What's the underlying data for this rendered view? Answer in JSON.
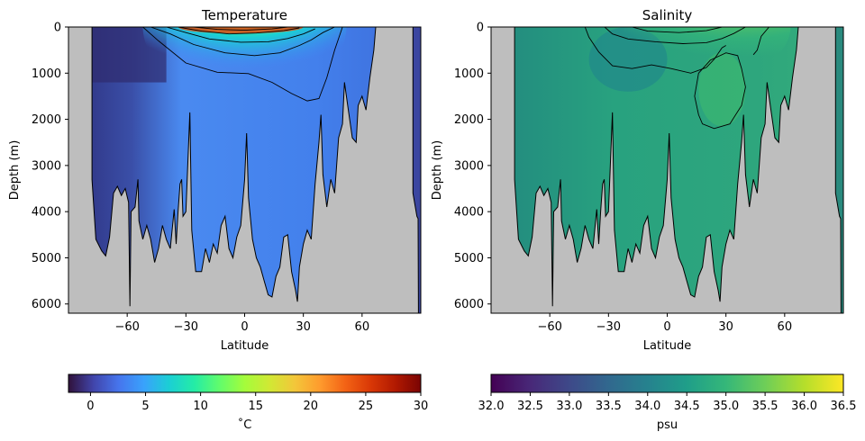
{
  "chart_data": [
    {
      "type": "contour",
      "title": "Temperature",
      "xlabel": "Latitude",
      "ylabel": "Depth (m)",
      "xlim": [
        -90,
        90
      ],
      "ylim": [
        6200,
        0
      ],
      "xticks": [
        "−60",
        "−30",
        "0",
        "30",
        "60"
      ],
      "xtick_values": [
        -60,
        -30,
        0,
        30,
        60
      ],
      "yticks": [
        "0",
        "1000",
        "2000",
        "3000",
        "4000",
        "5000",
        "6000"
      ],
      "ytick_values": [
        0,
        1000,
        2000,
        3000,
        4000,
        5000,
        6000
      ],
      "colormap": "turbo",
      "colorbar": {
        "label": "˚C",
        "range": [
          -2,
          30
        ],
        "ticks": [
          "0",
          "5",
          "10",
          "15",
          "20",
          "25",
          "30"
        ],
        "tick_values": [
          0,
          5,
          10,
          15,
          20,
          25,
          30
        ],
        "colors": [
          "#30123b",
          "#4145ab",
          "#4675ed",
          "#39a2fc",
          "#1bcfd4",
          "#24eca6",
          "#61fc6c",
          "#a4fc3b",
          "#d1e834",
          "#f3c63a",
          "#fe9b2d",
          "#f36315",
          "#d93806",
          "#b11901",
          "#7a0403"
        ]
      },
      "ocean_color": "#4272e6",
      "land_color": "#bebebe"
    },
    {
      "type": "contour",
      "title": "Salinity",
      "xlabel": "Latitude",
      "ylabel": "Depth (m)",
      "xlim": [
        -90,
        90
      ],
      "ylim": [
        6200,
        0
      ],
      "xticks": [
        "−60",
        "−30",
        "0",
        "30",
        "60"
      ],
      "xtick_values": [
        -60,
        -30,
        0,
        30,
        60
      ],
      "yticks": [
        "0",
        "1000",
        "2000",
        "3000",
        "4000",
        "5000",
        "6000"
      ],
      "ytick_values": [
        0,
        1000,
        2000,
        3000,
        4000,
        5000,
        6000
      ],
      "colormap": "viridis",
      "colorbar": {
        "label": "psu",
        "range": [
          32.0,
          36.5
        ],
        "ticks": [
          "32.0",
          "32.5",
          "33.0",
          "33.5",
          "34.0",
          "34.5",
          "35.0",
          "35.5",
          "36.0",
          "36.5"
        ],
        "tick_values": [
          32.0,
          32.5,
          33.0,
          33.5,
          34.0,
          34.5,
          35.0,
          35.5,
          36.0,
          36.5
        ],
        "colors": [
          "#440154",
          "#482878",
          "#3e4989",
          "#31688e",
          "#26828e",
          "#1f9e89",
          "#35b779",
          "#6ece58",
          "#b5de2b",
          "#fde725"
        ]
      },
      "ocean_color": "#2aa37f",
      "land_color": "#bebebe"
    }
  ]
}
